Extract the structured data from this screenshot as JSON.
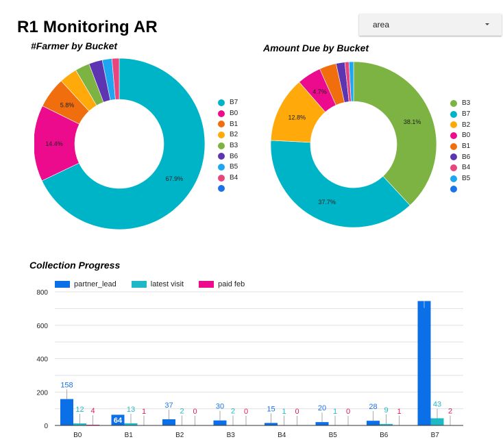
{
  "page": {
    "title": "R1 Monitoring AR"
  },
  "filter": {
    "selected": "area",
    "icon": "caret-down-icon"
  },
  "colors": {
    "B7": "#00b4c8",
    "B0": "#ec0b8c",
    "B1": "#f06e0e",
    "B2": "#ffa90a",
    "B3": "#7cb342",
    "B6": "#5e35b1",
    "B5": "#1ea7f0",
    "B4": "#e8457c",
    "other": "#1a73e8",
    "partner_lead": "#0b6fe8",
    "latest_visit": "#1fb8c6",
    "paid_feb": "#ec0b8c"
  },
  "chart_data": [
    {
      "type": "pie",
      "variant": "donut",
      "title": "#Farmer by Bucket",
      "slices": [
        {
          "label": "B7",
          "value": 745,
          "percent_label": "67.9%"
        },
        {
          "label": "B0",
          "value": 158,
          "percent_label": "14.4%"
        },
        {
          "label": "B1",
          "value": 64,
          "percent_label": "5.8%"
        },
        {
          "label": "B2",
          "value": 37,
          "percent_label": ""
        },
        {
          "label": "B3",
          "value": 30,
          "percent_label": ""
        },
        {
          "label": "B6",
          "value": 28,
          "percent_label": ""
        },
        {
          "label": "B5",
          "value": 20,
          "percent_label": ""
        },
        {
          "label": "B4",
          "value": 15,
          "percent_label": ""
        }
      ],
      "legend": [
        "B7",
        "B0",
        "B1",
        "B2",
        "B3",
        "B6",
        "B5",
        "B4",
        ""
      ],
      "legend_position": "right"
    },
    {
      "type": "pie",
      "variant": "donut",
      "title": "Amount Due by Bucket",
      "slices": [
        {
          "label": "B3",
          "value": 38.1,
          "percent_label": "38.1%"
        },
        {
          "label": "B7",
          "value": 37.7,
          "percent_label": "37.7%"
        },
        {
          "label": "B2",
          "value": 12.8,
          "percent_label": "12.8%"
        },
        {
          "label": "B0",
          "value": 4.7,
          "percent_label": "4.7%"
        },
        {
          "label": "B1",
          "value": 3.3,
          "percent_label": ""
        },
        {
          "label": "B6",
          "value": 1.7,
          "percent_label": ""
        },
        {
          "label": "B4",
          "value": 0.8,
          "percent_label": ""
        },
        {
          "label": "B5",
          "value": 0.9,
          "percent_label": ""
        }
      ],
      "legend": [
        "B3",
        "B7",
        "B2",
        "B0",
        "B1",
        "B6",
        "B4",
        "B5",
        ""
      ],
      "legend_position": "right"
    },
    {
      "type": "bar",
      "title": "Collection Progress",
      "categories": [
        "B0",
        "B1",
        "B2",
        "B3",
        "B4",
        "B5",
        "B6",
        "B7"
      ],
      "series": [
        {
          "name": "partner_lead",
          "key": "partner_lead",
          "values": [
            158,
            64,
            37,
            30,
            15,
            20,
            28,
            745
          ]
        },
        {
          "name": "latest visit",
          "key": "latest_visit",
          "values": [
            12,
            13,
            2,
            2,
            1,
            1,
            9,
            43
          ]
        },
        {
          "name": "paid feb",
          "key": "paid_feb",
          "values": [
            4,
            1,
            0,
            0,
            0,
            0,
            1,
            2
          ]
        }
      ],
      "xlabel": "",
      "ylabel": "",
      "yticks": [
        0,
        200,
        400,
        600,
        800
      ],
      "ylim": [
        0,
        800
      ],
      "grid": true,
      "legend_position": "top-left"
    }
  ]
}
